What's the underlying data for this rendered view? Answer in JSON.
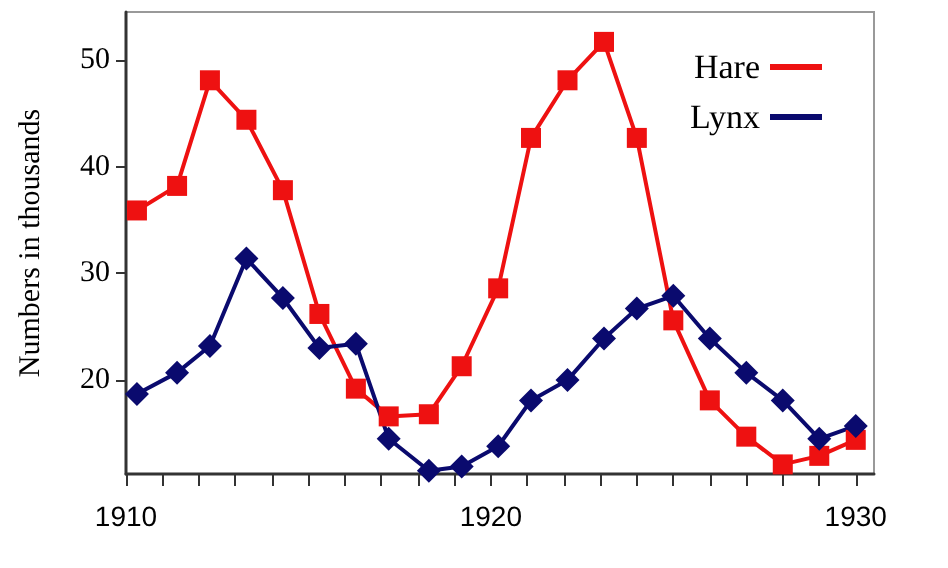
{
  "chart_data": {
    "type": "line",
    "ylabel": "Numbers in thousands",
    "x": [
      1910.3,
      1911.4,
      1912.3,
      1913.3,
      1914.3,
      1915.3,
      1916.3,
      1917.2,
      1918.3,
      1919.2,
      1920.2,
      1921.1,
      1922.1,
      1923.1,
      1924.0,
      1925.0,
      1926.0,
      1927.0,
      1928.0,
      1929.0,
      1930.0
    ],
    "series": [
      {
        "name": "Hare",
        "color": "#ee1111",
        "marker": "square",
        "values": [
          35.9,
          38.2,
          48.1,
          44.4,
          37.8,
          26.2,
          19.2,
          16.6,
          16.8,
          21.3,
          28.6,
          42.7,
          48.1,
          51.7,
          42.7,
          25.6,
          18.1,
          14.7,
          12.1,
          12.9,
          14.4
        ]
      },
      {
        "name": "Lynx",
        "color": "#0a0a6e",
        "marker": "diamond",
        "values": [
          18.7,
          20.7,
          23.2,
          31.4,
          27.7,
          23.0,
          23.4,
          14.5,
          11.5,
          11.9,
          13.8,
          18.1,
          20.0,
          23.9,
          26.7,
          27.9,
          23.9,
          20.7,
          18.1,
          14.5,
          15.7
        ]
      }
    ],
    "xlim": [
      1910,
      1930.5
    ],
    "xticks": [
      1910,
      {
        "value": 1911,
        "label": null
      },
      {
        "value": 1912,
        "label": null
      },
      {
        "value": 1913,
        "label": null
      },
      {
        "value": 1914,
        "label": null
      },
      {
        "value": 1915,
        "label": null
      },
      {
        "value": 1916,
        "label": null
      },
      {
        "value": 1917,
        "label": null
      },
      {
        "value": 1918,
        "label": null
      },
      {
        "value": 1919,
        "label": null
      },
      1920,
      {
        "value": 1921,
        "label": null
      },
      {
        "value": 1922,
        "label": null
      },
      {
        "value": 1923,
        "label": null
      },
      {
        "value": 1924,
        "label": null
      },
      {
        "value": 1925,
        "label": null
      },
      {
        "value": 1926,
        "label": null
      },
      {
        "value": 1927,
        "label": null
      },
      {
        "value": 1928,
        "label": null
      },
      {
        "value": 1929,
        "label": null
      },
      1930
    ],
    "ylim": [
      11.2,
      54.5
    ],
    "yticks": [
      20,
      30,
      40,
      50
    ],
    "grid": false,
    "legend": "top right",
    "line_style": "solid"
  }
}
